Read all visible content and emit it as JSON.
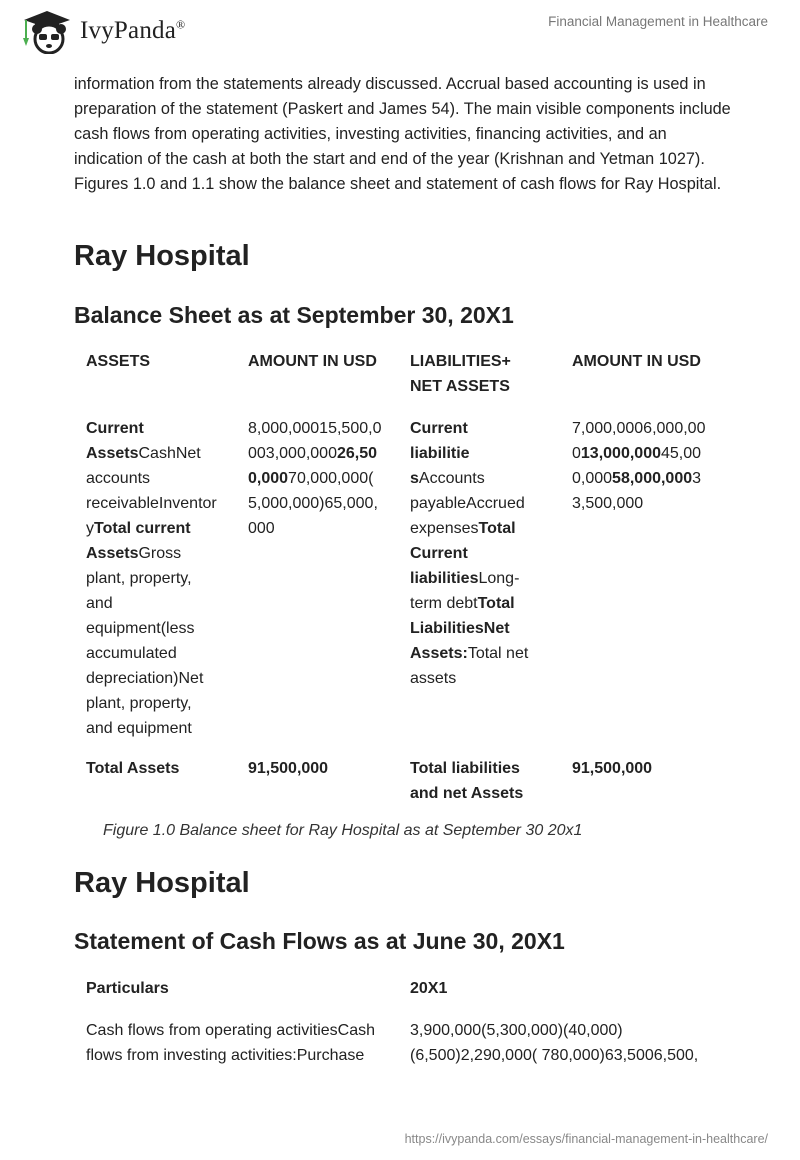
{
  "header": {
    "logo_text": "IvyPanda",
    "logo_mark": "®",
    "doc_title": "Financial Management in Healthcare"
  },
  "intro_paragraph": "information from the statements already discussed. Accrual based accounting is used in preparation of the statement (Paskert and James 54). The main visible components include cash flows from operating activities, investing activities, financing activities, and an indication of the cash at both the start and end of the year (Krishnan and Yetman 1027). Figures 1.0 and 1.1 show the balance sheet and statement of cash flows for Ray Hospital.",
  "section1": {
    "title": "Ray Hospital",
    "subtitle": "Balance Sheet as at September 30, 20X1",
    "headers": [
      "ASSETS",
      "AMOUNT IN USD",
      "LIABILITIES+",
      "NET ASSETS",
      "AMOUNT IN USD"
    ],
    "body_cells": [
      [
        [
          [
            "Current",
            1
          ]
        ],
        [
          [
            "Assets",
            1
          ],
          [
            "CashNet",
            0
          ]
        ],
        [
          [
            "accounts",
            0
          ]
        ],
        [
          [
            "receivableInventor",
            0
          ]
        ],
        [
          [
            "y",
            0
          ],
          [
            "Total current",
            1
          ]
        ],
        [
          [
            "Assets",
            1
          ],
          [
            "Gross",
            0
          ]
        ],
        [
          [
            "plant, property,",
            0
          ]
        ],
        [
          [
            "and",
            0
          ]
        ],
        [
          [
            "equipment(less",
            0
          ]
        ],
        [
          [
            "accumulated",
            0
          ]
        ],
        [
          [
            "depreciation)Net",
            0
          ]
        ],
        [
          [
            "plant, property,",
            0
          ]
        ],
        [
          [
            "and equipment",
            0
          ]
        ]
      ],
      [
        [
          [
            "8,000,00015,500,0",
            0
          ]
        ],
        [
          [
            "003,000,000",
            0
          ],
          [
            "26,50",
            1
          ]
        ],
        [
          [
            "0,000",
            1
          ],
          [
            "70,000,000(",
            0
          ]
        ],
        [
          [
            "5,000,000)65,000,",
            0
          ]
        ],
        [
          [
            "000",
            0
          ]
        ]
      ],
      [
        [
          [
            "Current",
            1
          ]
        ],
        [
          [
            "liabilitie",
            1
          ]
        ],
        [
          [
            "s",
            1
          ],
          [
            "Accounts",
            0
          ]
        ],
        [
          [
            "payableAccrued",
            0
          ]
        ],
        [
          [
            "expenses",
            0
          ],
          [
            "Total",
            1
          ]
        ],
        [
          [
            "Current",
            1
          ]
        ],
        [
          [
            "liabilities",
            1
          ],
          [
            "Long-",
            0
          ]
        ],
        [
          [
            "term debt",
            0
          ],
          [
            "Total",
            1
          ]
        ],
        [
          [
            "LiabilitiesNet",
            1
          ]
        ],
        [
          [
            "Assets:",
            1
          ],
          [
            "Total net",
            0
          ]
        ],
        [
          [
            "assets",
            0
          ]
        ]
      ],
      [
        [
          [
            "7,000,0006,000,00",
            0
          ]
        ],
        [
          [
            "0",
            0
          ],
          [
            "13,000,000",
            1
          ],
          [
            "45,00",
            0
          ]
        ],
        [
          [
            "0,000",
            0
          ],
          [
            "58,000,000",
            1
          ],
          [
            "3",
            0
          ]
        ],
        [
          [
            "3,500,000",
            0
          ]
        ]
      ]
    ],
    "total_row": {
      "assets_label": "Total Assets",
      "assets_value": "91,500,000",
      "liab_label_1": "Total liabilities",
      "liab_label_2": "and net Assets",
      "liab_value": "91,500,000"
    },
    "caption": "Figure 1.0 Balance sheet for Ray Hospital as at September 30 20x1"
  },
  "section2": {
    "title": "Ray Hospital",
    "subtitle": "Statement of Cash Flows as at June 30, 20X1",
    "headers": [
      "Particulars",
      "20X1"
    ],
    "particulars_lines": [
      "Cash flows from operating activitiesCash",
      "flows from investing activities:Purchase"
    ],
    "values_lines": [
      "3,900,000(5,300,000)(40,000)",
      "(6,500)2,290,000( 780,000)63,5006,500,"
    ]
  },
  "footer": {
    "url": "https://ivypanda.com/essays/financial-management-in-healthcare/"
  },
  "colors": {
    "logo_green": "#4caf50",
    "text": "#222222",
    "muted": "#777777"
  }
}
